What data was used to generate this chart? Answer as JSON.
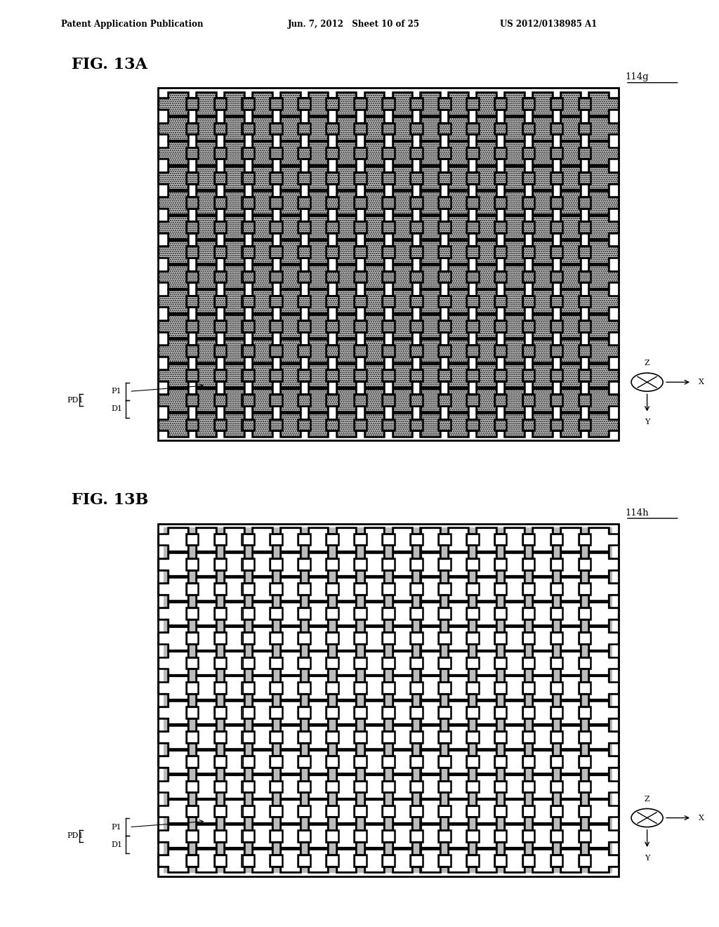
{
  "fig_title_a": "FIG. 13A",
  "fig_title_b": "FIG. 13B",
  "ref_a": "114g",
  "ref_b": "114h",
  "header_left": "Patent Application Publication",
  "header_mid": "Jun. 7, 2012   Sheet 10 of 25",
  "header_right": "US 2012/0138985 A1",
  "label_PD1": "PD1",
  "label_P1": "P1",
  "label_D1": "D1",
  "background_color": "#ffffff",
  "cross_fill_a": "#cccccc",
  "cross_fill_b": "#ffffff",
  "bg_b_color": "#bbbbbb",
  "hatch_a": ".....",
  "grid_nx": 16,
  "grid_ny": 14
}
